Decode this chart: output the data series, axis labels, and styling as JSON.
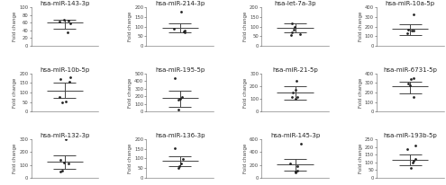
{
  "panels": [
    {
      "title": "hsa-miR-143-3p",
      "ylim": [
        0,
        100
      ],
      "yticks": [
        0,
        20,
        40,
        60,
        80,
        100
      ],
      "mean": 60,
      "ci_low": 45,
      "ci_high": 68,
      "points": [
        62,
        65,
        68,
        35,
        59
      ]
    },
    {
      "title": "hsa-miR-214-3p",
      "ylim": [
        0,
        200
      ],
      "yticks": [
        0,
        50,
        100,
        150,
        200
      ],
      "mean": 95,
      "ci_low": 72,
      "ci_high": 115,
      "points": [
        178,
        80,
        70,
        75,
        90
      ]
    },
    {
      "title": "hsa-let-7a-3p",
      "ylim": [
        0,
        200
      ],
      "yticks": [
        0,
        50,
        100,
        150,
        200
      ],
      "mean": 92,
      "ci_low": 68,
      "ci_high": 115,
      "points": [
        115,
        100,
        85,
        70,
        60,
        55
      ]
    },
    {
      "title": "hsa-miR-10a-5p",
      "ylim": [
        0,
        400
      ],
      "yticks": [
        0,
        100,
        200,
        300,
        400
      ],
      "mean": 178,
      "ci_low": 108,
      "ci_high": 228,
      "points": [
        325,
        155,
        135,
        160,
        170
      ]
    },
    {
      "title": "hsa-miR-10b-5p",
      "ylim": [
        0,
        200
      ],
      "yticks": [
        0,
        50,
        100,
        150,
        200
      ],
      "mean": 108,
      "ci_low": 72,
      "ci_high": 152,
      "points": [
        178,
        168,
        158,
        78,
        52,
        48
      ]
    },
    {
      "title": "hsa-miR-195-5p",
      "ylim": [
        0,
        500
      ],
      "yticks": [
        0,
        100,
        200,
        300,
        400,
        500
      ],
      "mean": 182,
      "ci_low": 62,
      "ci_high": 278,
      "points": [
        432,
        188,
        172,
        152,
        28
      ]
    },
    {
      "title": "hsa-miR-21-5p",
      "ylim": [
        0,
        300
      ],
      "yticks": [
        0,
        100,
        200,
        300
      ],
      "mean": 152,
      "ci_low": 92,
      "ci_high": 198,
      "points": [
        242,
        168,
        152,
        118,
        112,
        98
      ]
    },
    {
      "title": "hsa-miR-6731-5p",
      "ylim": [
        0,
        400
      ],
      "yticks": [
        0,
        100,
        200,
        300,
        400
      ],
      "mean": 262,
      "ci_low": 192,
      "ci_high": 312,
      "points": [
        348,
        342,
        298,
        152,
        272
      ]
    },
    {
      "title": "hsa-miR-132-3p",
      "ylim": [
        0,
        300
      ],
      "yticks": [
        0,
        100,
        200,
        300
      ],
      "mean": 128,
      "ci_low": 72,
      "ci_high": 172,
      "points": [
        298,
        142,
        118,
        108,
        58,
        48
      ]
    },
    {
      "title": "hsa-miR-136-3p",
      "ylim": [
        0,
        200
      ],
      "yticks": [
        0,
        50,
        100,
        150,
        200
      ],
      "mean": 88,
      "ci_low": 58,
      "ci_high": 112,
      "points": [
        152,
        98,
        72,
        62,
        52
      ]
    },
    {
      "title": "hsa-miR-145-3p",
      "ylim": [
        0,
        600
      ],
      "yticks": [
        0,
        200,
        400,
        600
      ],
      "mean": 212,
      "ci_low": 108,
      "ci_high": 288,
      "points": [
        532,
        218,
        178,
        108,
        92,
        82
      ]
    },
    {
      "title": "hsa-miR-193b-5p",
      "ylim": [
        0,
        250
      ],
      "yticks": [
        0,
        50,
        100,
        150,
        200,
        250
      ],
      "mean": 118,
      "ci_low": 78,
      "ci_high": 152,
      "points": [
        212,
        188,
        122,
        112,
        98,
        62
      ]
    }
  ],
  "ylabel": "Fold change",
  "point_color": "#222222",
  "line_color": "#444444",
  "title_fontsize": 5.0,
  "label_fontsize": 4.0,
  "tick_fontsize": 3.8,
  "point_size": 4
}
